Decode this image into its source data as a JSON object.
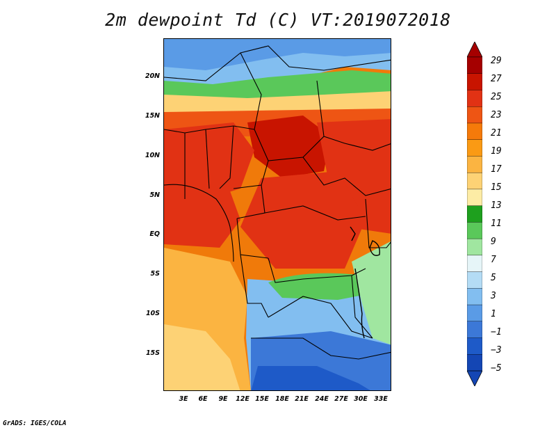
{
  "title": "2m dewpoint Td (C) VT:2019072018",
  "latitude_labels": [
    "20N",
    "15N",
    "10N",
    "5N",
    "EQ",
    "5S",
    "10S",
    "15S"
  ],
  "longitude_labels": [
    "3E",
    "6E",
    "9E",
    "12E",
    "15E",
    "18E",
    "21E",
    "24E",
    "27E",
    "30E",
    "33E"
  ],
  "colorbar": {
    "labels": [
      "29",
      "27",
      "25",
      "23",
      "21",
      "19",
      "17",
      "15",
      "13",
      "11",
      "9",
      "7",
      "5",
      "3",
      "1",
      "−1",
      "−3",
      "−5"
    ],
    "colors": [
      "#a50000",
      "#c81400",
      "#e13214",
      "#ee5514",
      "#f57a0a",
      "#fa9a14",
      "#fbb441",
      "#fdd275",
      "#fdeca5",
      "#1ea01e",
      "#5ac85a",
      "#a0e6a0",
      "#e6f5f8",
      "#b4dcf5",
      "#82bef0",
      "#5a9be6",
      "#3c78d7",
      "#1e5ac8",
      "#1446b4"
    ]
  },
  "footer": "GrADS: IGES/COLA"
}
